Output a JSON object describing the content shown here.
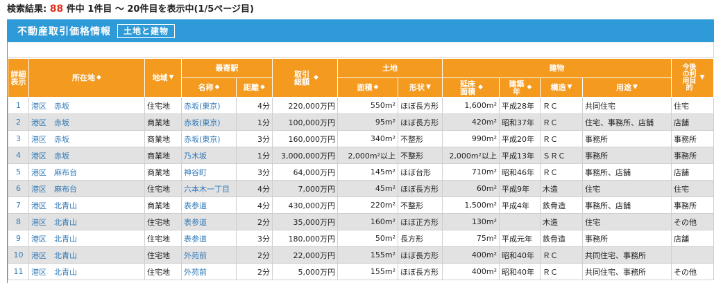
{
  "summary": {
    "prefix": "検索結果:",
    "count": "88",
    "suffix": "件中 1件目 ～ 20件目を表示中(1/5ページ目)"
  },
  "panel": {
    "title": "不動産取引価格情報",
    "tag": "土地と建物"
  },
  "icons": {
    "sort": "sort-updown-icon",
    "filter": "filter-down-icon"
  },
  "headers": {
    "detail": "詳細表示",
    "location": "所在地",
    "area_type": "地域",
    "station_group": "最寄駅",
    "station_name": "名称",
    "distance": "距離",
    "total_price": "取引総額",
    "land_group": "土地",
    "land_area": "面積",
    "land_shape": "形状",
    "building_group": "建物",
    "floor_area": "延床面積",
    "built_year": "建築年",
    "structure": "構造",
    "usage": "用途",
    "future_use": "今後の利用目的"
  },
  "rows": [
    {
      "no": "1",
      "location": "港区　赤坂",
      "area": "住宅地",
      "station": "赤坂(東京)",
      "distance": "4分",
      "price": "220,000万円",
      "land_area": "550m²",
      "shape": "ほぼ長方形",
      "floor": "1,600m²",
      "year": "平成28年",
      "structure": "ＲＣ",
      "usage": "共同住宅",
      "future": "住宅"
    },
    {
      "no": "2",
      "location": "港区　赤坂",
      "area": "商業地",
      "station": "赤坂(東京)",
      "distance": "1分",
      "price": "100,000万円",
      "land_area": "95m²",
      "shape": "ほぼ長方形",
      "floor": "420m²",
      "year": "昭和37年",
      "structure": "ＲＣ",
      "usage": "住宅、事務所、店舗",
      "future": "店舗"
    },
    {
      "no": "3",
      "location": "港区　赤坂",
      "area": "商業地",
      "station": "赤坂(東京)",
      "distance": "3分",
      "price": "160,000万円",
      "land_area": "340m²",
      "shape": "不整形",
      "floor": "990m²",
      "year": "平成20年",
      "structure": "ＲＣ",
      "usage": "事務所",
      "future": "事務所"
    },
    {
      "no": "4",
      "location": "港区　赤坂",
      "area": "商業地",
      "station": "乃木坂",
      "distance": "1分",
      "price": "3,000,000万円",
      "land_area": "2,000m²以上",
      "shape": "不整形",
      "floor": "2,000m²以上",
      "year": "平成13年",
      "structure": "ＳＲＣ",
      "usage": "事務所",
      "future": "事務所"
    },
    {
      "no": "5",
      "location": "港区　麻布台",
      "area": "商業地",
      "station": "神谷町",
      "distance": "3分",
      "price": "64,000万円",
      "land_area": "145m²",
      "shape": "ほぼ台形",
      "floor": "710m²",
      "year": "昭和46年",
      "structure": "ＲＣ",
      "usage": "事務所、店舗",
      "future": "店舗"
    },
    {
      "no": "6",
      "location": "港区　麻布台",
      "area": "住宅地",
      "station": "六本木一丁目",
      "distance": "4分",
      "price": "7,000万円",
      "land_area": "45m²",
      "shape": "ほぼ長方形",
      "floor": "60m²",
      "year": "平成9年",
      "structure": "木造",
      "usage": "住宅",
      "future": "住宅"
    },
    {
      "no": "7",
      "location": "港区　北青山",
      "area": "商業地",
      "station": "表参道",
      "distance": "4分",
      "price": "430,000万円",
      "land_area": "220m²",
      "shape": "不整形",
      "floor": "1,500m²",
      "year": "平成4年",
      "structure": "鉄骨造",
      "usage": "事務所、店舗",
      "future": "事務所"
    },
    {
      "no": "8",
      "location": "港区　北青山",
      "area": "住宅地",
      "station": "表参道",
      "distance": "2分",
      "price": "35,000万円",
      "land_area": "160m²",
      "shape": "ほぼ正方形",
      "floor": "130m²",
      "year": "",
      "structure": "木造",
      "usage": "住宅",
      "future": "その他"
    },
    {
      "no": "9",
      "location": "港区　北青山",
      "area": "住宅地",
      "station": "表参道",
      "distance": "3分",
      "price": "180,000万円",
      "land_area": "50m²",
      "shape": "長方形",
      "floor": "75m²",
      "year": "平成元年",
      "structure": "鉄骨造",
      "usage": "事務所",
      "future": "店舗"
    },
    {
      "no": "10",
      "location": "港区　北青山",
      "area": "住宅地",
      "station": "外苑前",
      "distance": "2分",
      "price": "22,000万円",
      "land_area": "155m²",
      "shape": "ほぼ長方形",
      "floor": "400m²",
      "year": "昭和40年",
      "structure": "ＲＣ",
      "usage": "共同住宅、事務所",
      "future": ""
    },
    {
      "no": "11",
      "location": "港区　北青山",
      "area": "住宅地",
      "station": "外苑前",
      "distance": "2分",
      "price": "5,000万円",
      "land_area": "155m²",
      "shape": "ほぼ長方形",
      "floor": "400m²",
      "year": "昭和40年",
      "structure": "ＲＣ",
      "usage": "共同住宅、事務所",
      "future": "その他"
    }
  ]
}
